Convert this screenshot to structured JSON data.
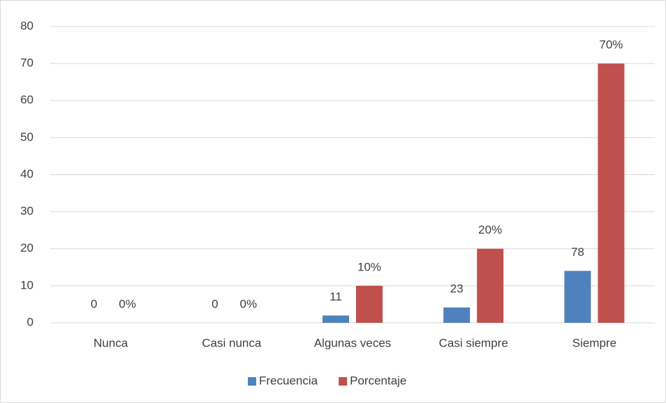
{
  "chart_data": {
    "type": "bar",
    "categories": [
      "Nunca",
      "Casi nunca",
      "Algunas veces",
      "Casi siempre",
      "Siempre"
    ],
    "series": [
      {
        "name": "Frecuencia",
        "color": "#4f81bd",
        "axis": "y2",
        "values": [
          0,
          0,
          11,
          23,
          78
        ]
      },
      {
        "name": "Porcentaje",
        "color": "#c0504d",
        "values": [
          0,
          0,
          10,
          20,
          70
        ],
        "value_labels": [
          "0%",
          "0%",
          "10%",
          "20%",
          "70%"
        ]
      }
    ],
    "ylim": [
      0,
      80
    ],
    "yticks": [
      0,
      10,
      20,
      30,
      40,
      50,
      60,
      70,
      80
    ],
    "y2lim": [
      0,
      445
    ],
    "grid": true,
    "legend": "bottom"
  }
}
